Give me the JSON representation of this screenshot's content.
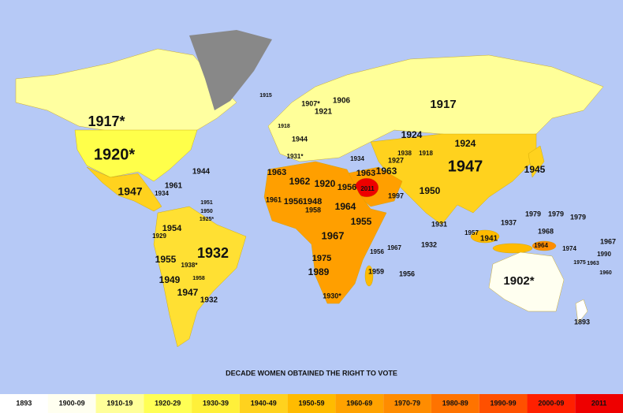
{
  "map": {
    "labels": [
      "1917*",
      "1920*",
      "1944",
      "1947",
      "1961",
      "1934",
      "1951",
      "1950",
      "1925*",
      "1954",
      "1929",
      "1932",
      "1955",
      "1938*",
      "1958",
      "1949",
      "1947",
      "1932",
      "1915",
      "1907*",
      "1906",
      "1921",
      "1918",
      "1944",
      "1931*",
      "1934",
      "1917",
      "1924",
      "1924",
      "1947",
      "1945",
      "1927",
      "1938",
      "1918",
      "1963",
      "1963",
      "1950",
      "1963",
      "1962",
      "1920",
      "1956",
      "2011",
      "1997",
      "1961",
      "1956",
      "1948",
      "1958",
      "1964",
      "1955",
      "1967",
      "1975",
      "1989",
      "1930*",
      "1959",
      "1956",
      "1967",
      "1956",
      "1931",
      "1932",
      "1957",
      "1941",
      "1937",
      "1902*",
      "1893",
      "1979",
      "1979",
      "1979",
      "1968",
      "1964",
      "1974",
      "1967",
      "1990",
      "1975",
      "1963",
      "1960"
    ]
  },
  "legend": {
    "title": "DECADE WOMEN OBTAINED THE RIGHT TO VOTE",
    "items": [
      {
        "label": "1893",
        "color": "#ffffff"
      },
      {
        "label": "1900-09",
        "color": "#fffff0"
      },
      {
        "label": "1910-19",
        "color": "#ffff99"
      },
      {
        "label": "1920-29",
        "color": "#ffff55"
      },
      {
        "label": "1930-39",
        "color": "#fff03a"
      },
      {
        "label": "1940-49",
        "color": "#ffd21e"
      },
      {
        "label": "1950-59",
        "color": "#ffbb00"
      },
      {
        "label": "1960-69",
        "color": "#ffa200"
      },
      {
        "label": "1970-79",
        "color": "#ff8c00"
      },
      {
        "label": "1980-89",
        "color": "#ff7300"
      },
      {
        "label": "1990-99",
        "color": "#ff5000"
      },
      {
        "label": "2000-09",
        "color": "#ff2000"
      },
      {
        "label": "2011",
        "color": "#ee0000"
      }
    ]
  }
}
